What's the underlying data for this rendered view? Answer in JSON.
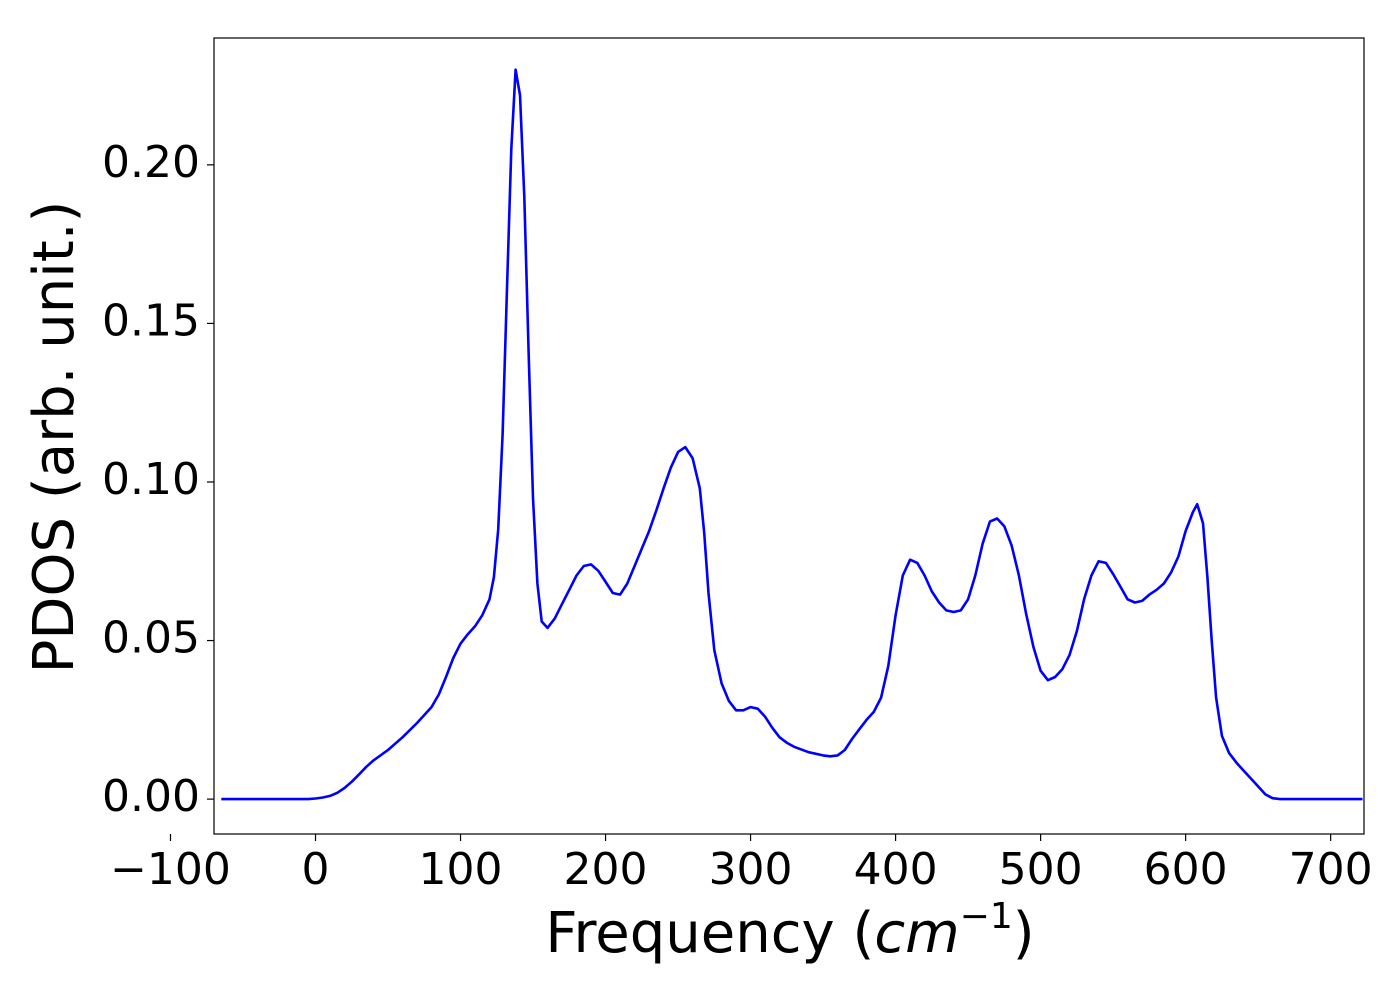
{
  "chart_data": {
    "type": "line",
    "xlabel": "Frequency (",
    "xlabel_unit_base": "cm",
    "xlabel_unit_exp": "−1",
    "xlabel_close": ")",
    "ylabel": "PDOS (arb. unit.)",
    "xlim": [
      -70,
      723
    ],
    "ylim": [
      -0.011,
      0.24
    ],
    "xticks": [
      -100,
      0,
      100,
      200,
      300,
      400,
      500,
      600,
      700
    ],
    "xtick_labels": [
      "−100",
      "0",
      "100",
      "200",
      "300",
      "400",
      "500",
      "600",
      "700"
    ],
    "yticks": [
      0.0,
      0.05,
      0.1,
      0.15,
      0.2
    ],
    "ytick_labels": [
      "0.00",
      "0.05",
      "0.10",
      "0.15",
      "0.20"
    ],
    "grid": false,
    "series": [
      {
        "color": "#0000ff",
        "x": [
          -65,
          -40,
          -20,
          -5,
          0,
          5,
          10,
          15,
          20,
          25,
          30,
          35,
          40,
          50,
          60,
          70,
          80,
          85,
          90,
          95,
          100,
          105,
          110,
          115,
          120,
          123,
          126,
          129,
          132,
          135,
          138,
          141,
          144,
          147,
          150,
          153,
          156,
          160,
          165,
          170,
          175,
          180,
          185,
          190,
          195,
          200,
          205,
          210,
          215,
          220,
          225,
          230,
          235,
          240,
          245,
          250,
          255,
          260,
          265,
          268,
          271,
          275,
          280,
          285,
          290,
          295,
          300,
          305,
          310,
          315,
          320,
          325,
          330,
          340,
          350,
          355,
          360,
          365,
          370,
          375,
          380,
          385,
          390,
          395,
          400,
          405,
          410,
          415,
          420,
          425,
          430,
          435,
          440,
          445,
          450,
          455,
          460,
          465,
          470,
          475,
          480,
          485,
          490,
          495,
          500,
          505,
          510,
          515,
          520,
          525,
          530,
          535,
          540,
          545,
          550,
          555,
          560,
          565,
          570,
          575,
          580,
          585,
          590,
          595,
          600,
          605,
          608,
          612,
          615,
          618,
          621,
          625,
          630,
          635,
          640,
          645,
          650,
          655,
          660,
          665,
          670,
          680,
          700,
          722
        ],
        "y": [
          0.0,
          0.0,
          0.0,
          0.0,
          0.0002,
          0.0005,
          0.001,
          0.002,
          0.0035,
          0.0055,
          0.0078,
          0.0102,
          0.0122,
          0.0155,
          0.0195,
          0.024,
          0.029,
          0.033,
          0.0385,
          0.0445,
          0.049,
          0.052,
          0.0545,
          0.058,
          0.063,
          0.07,
          0.085,
          0.115,
          0.16,
          0.205,
          0.23,
          0.222,
          0.19,
          0.14,
          0.095,
          0.068,
          0.056,
          0.054,
          0.057,
          0.0615,
          0.066,
          0.0705,
          0.0735,
          0.074,
          0.072,
          0.0685,
          0.065,
          0.0645,
          0.068,
          0.0735,
          0.079,
          0.0845,
          0.091,
          0.098,
          0.1045,
          0.1095,
          0.111,
          0.1075,
          0.098,
          0.084,
          0.065,
          0.047,
          0.0365,
          0.031,
          0.028,
          0.028,
          0.029,
          0.0285,
          0.026,
          0.0225,
          0.0195,
          0.0178,
          0.0165,
          0.0148,
          0.0138,
          0.0135,
          0.0138,
          0.0155,
          0.019,
          0.022,
          0.025,
          0.0275,
          0.032,
          0.042,
          0.058,
          0.0705,
          0.0755,
          0.0745,
          0.0705,
          0.0655,
          0.062,
          0.0595,
          0.059,
          0.0595,
          0.063,
          0.0705,
          0.0805,
          0.0875,
          0.0885,
          0.086,
          0.08,
          0.0705,
          0.0585,
          0.048,
          0.0405,
          0.0375,
          0.0385,
          0.041,
          0.0455,
          0.053,
          0.063,
          0.0705,
          0.075,
          0.0745,
          0.071,
          0.067,
          0.063,
          0.062,
          0.0625,
          0.0645,
          0.066,
          0.068,
          0.0715,
          0.0765,
          0.0845,
          0.0905,
          0.093,
          0.087,
          0.07,
          0.05,
          0.032,
          0.02,
          0.0145,
          0.0115,
          0.009,
          0.0065,
          0.004,
          0.0015,
          0.0003,
          0.0,
          0.0,
          0.0,
          0.0,
          0.0
        ]
      }
    ]
  }
}
